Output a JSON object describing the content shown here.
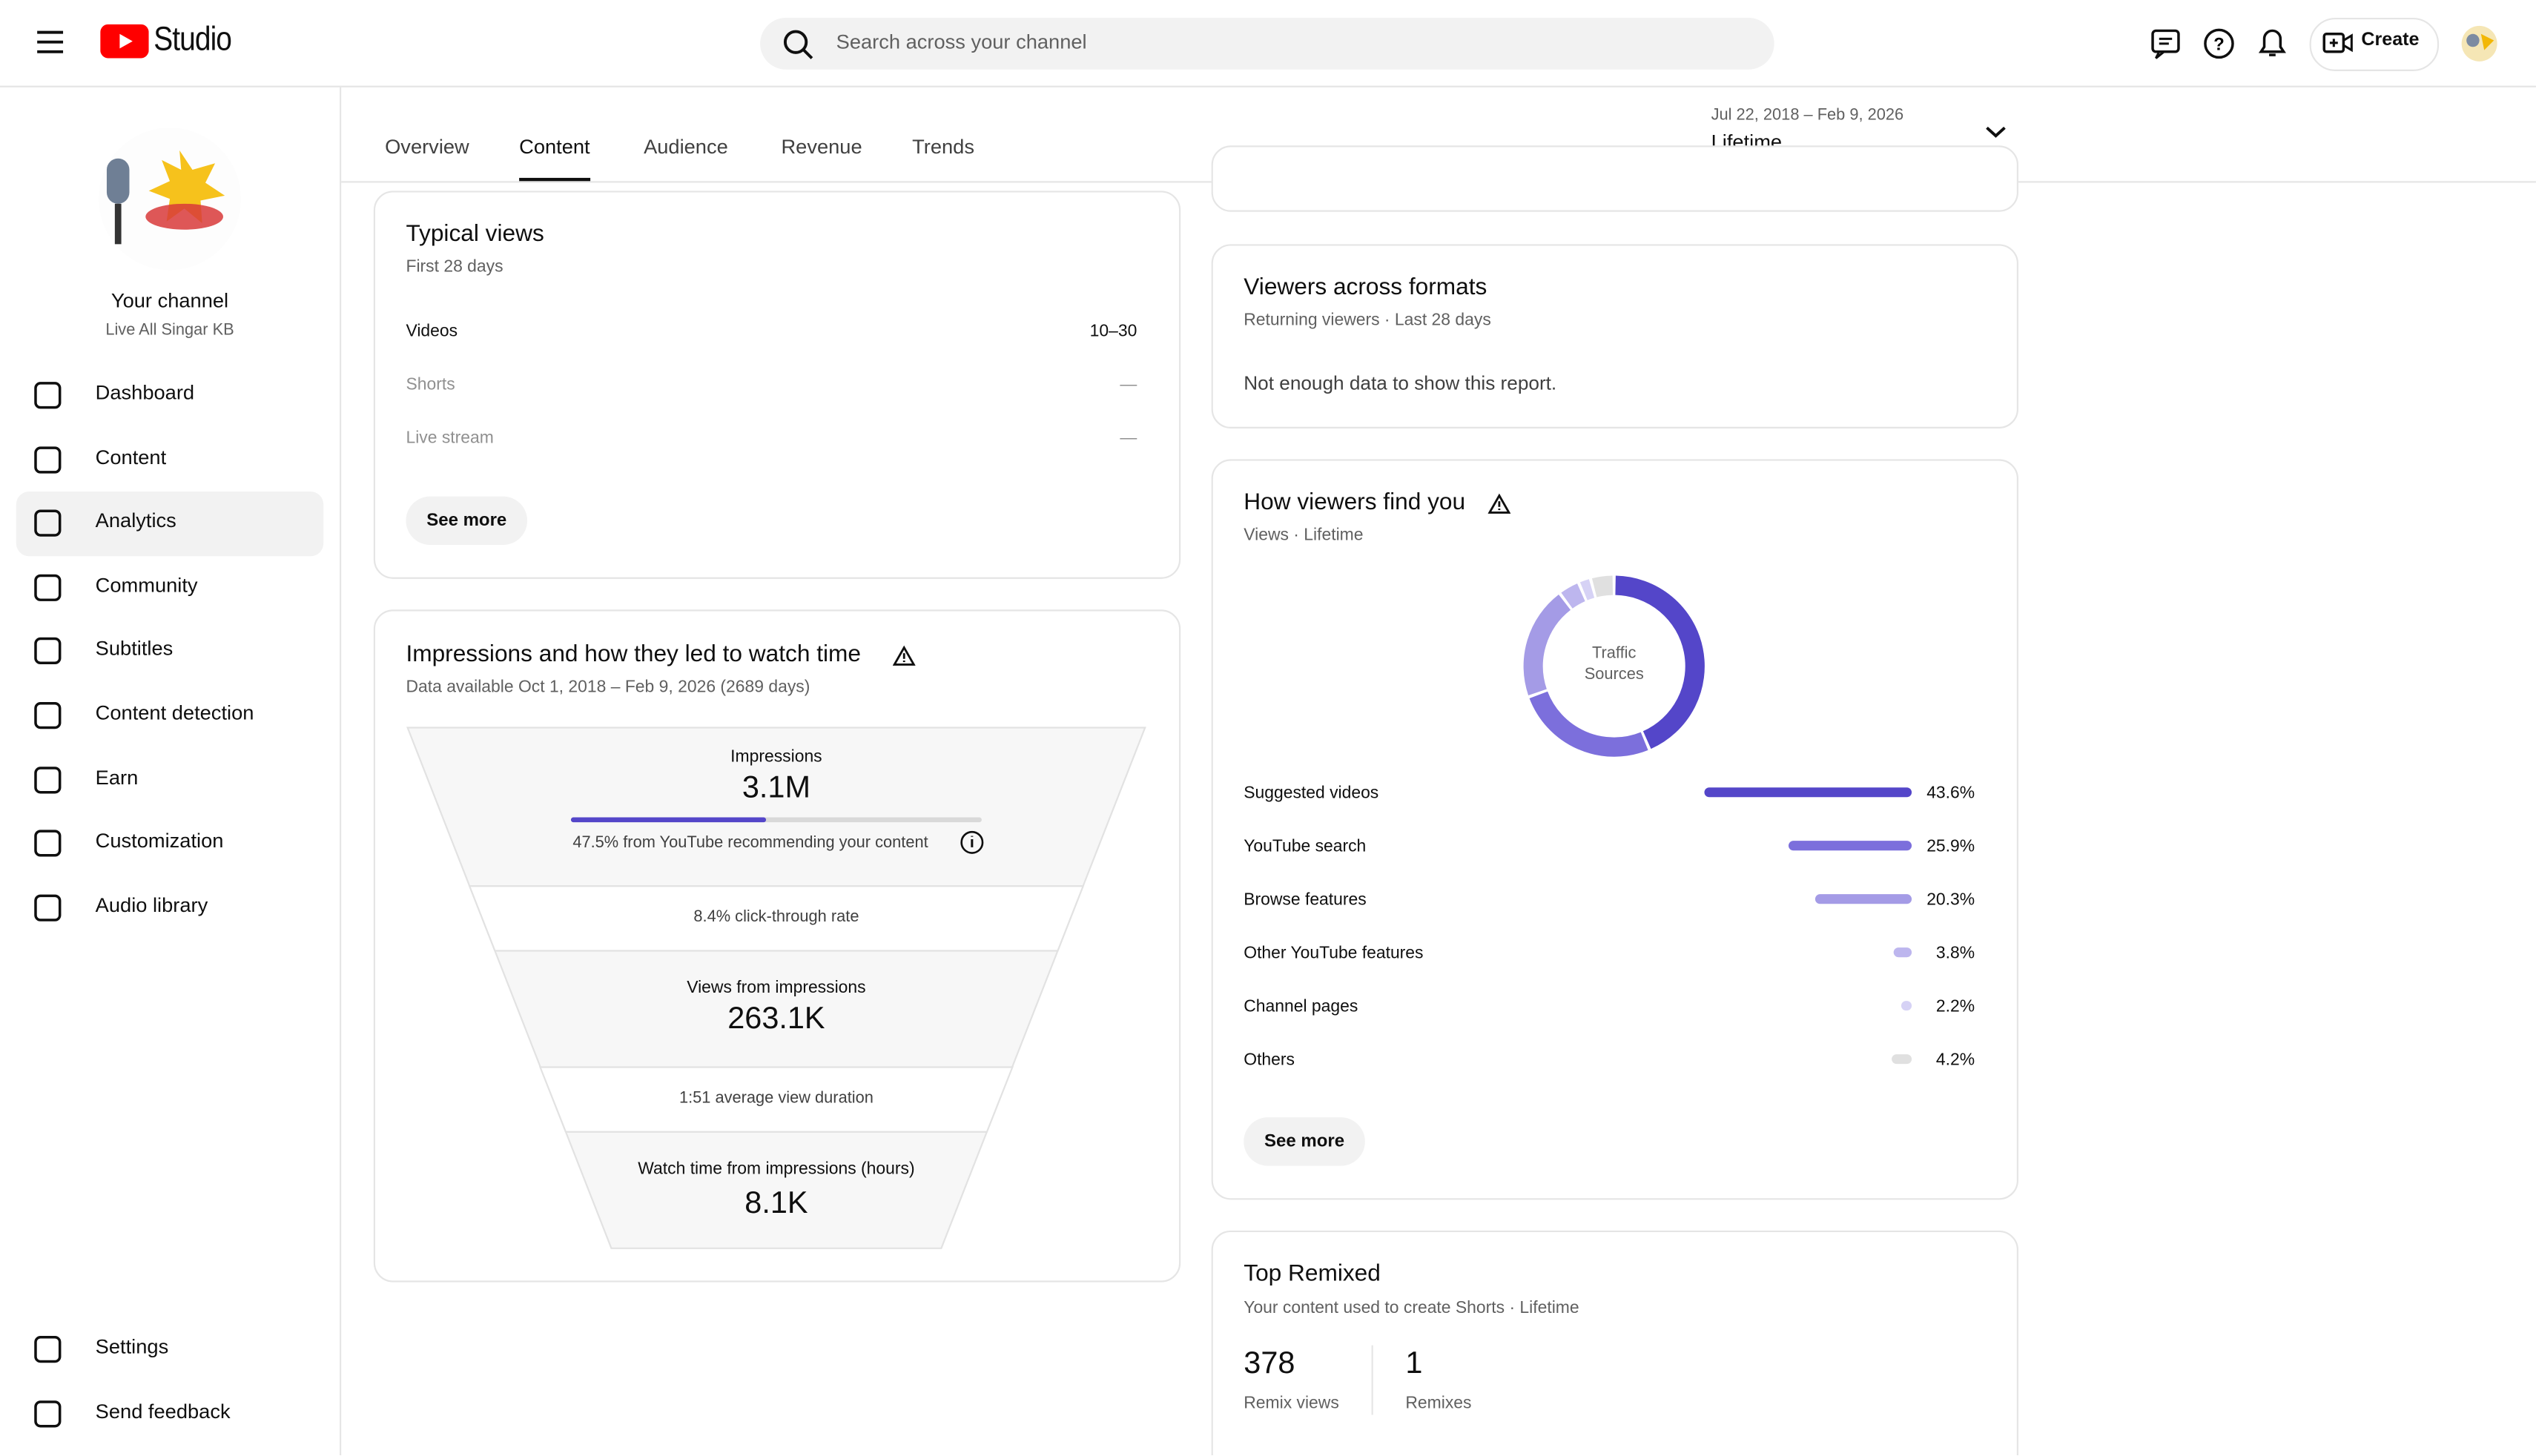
{
  "header": {
    "product": "Studio",
    "search_placeholder": "Search across your channel",
    "create": "Create"
  },
  "sidebar": {
    "channel_title": "Your channel",
    "channel_name": "Live All Singar KB",
    "nav": [
      "Dashboard",
      "Content",
      "Analytics",
      "Community",
      "Subtitles",
      "Content detection",
      "Earn",
      "Customization",
      "Audio library"
    ],
    "footer_nav": [
      "Settings",
      "Send feedback"
    ]
  },
  "tabs": [
    "Overview",
    "Content",
    "Audience",
    "Revenue",
    "Trends"
  ],
  "date_range": {
    "range": "Jul 22, 2018 – Feb 9, 2026",
    "label": "Lifetime"
  },
  "typical_views": {
    "title": "Typical views",
    "subtitle": "First 28 days",
    "rows": [
      [
        "Videos",
        "10–30"
      ],
      [
        "Shorts",
        "—"
      ],
      [
        "Live stream",
        "—"
      ]
    ],
    "button": "See more"
  },
  "impressions": {
    "title": "Impressions and how they led to watch time",
    "subtitle": "Data available Oct 1, 2018 – Feb 9, 2026 (2689 days)",
    "impressions_label": "Impressions",
    "impressions_value": "3.1M",
    "recommended": {
      "value": 47.5,
      "label": "47.5% from YouTube recommending your content"
    },
    "ctr": "8.4% click-through rate",
    "views_label": "Views from impressions",
    "views_value": "263.1K",
    "avg_duration": "1:51 average view duration",
    "watch_label": "Watch time from impressions (hours)",
    "watch_value": "8.1K"
  },
  "viewers_across_formats": {
    "title": "Viewers across formats",
    "subtitle": "Returning viewers · Last 28 days",
    "message": "Not enough data to show this report."
  },
  "chart_data": {
    "type": "donut",
    "title": "How viewers find you",
    "subtitle": "Views · Lifetime",
    "center_label": "Traffic Sources",
    "categories": [
      "Suggested videos",
      "YouTube search",
      "Browse features",
      "Other YouTube features",
      "Channel pages",
      "Others"
    ],
    "values": [
      43.6,
      25.9,
      20.3,
      3.8,
      2.2,
      4.2
    ],
    "value_labels": [
      "43.6%",
      "25.9%",
      "20.3%",
      "3.8%",
      "2.2%",
      "4.2%"
    ],
    "colors": [
      "#5446c9",
      "#7c6fdc",
      "#a49be6",
      "#bdb6ee",
      "#d6d2f5",
      "#e0e0e0"
    ],
    "button": "See more"
  },
  "top_remixed": {
    "title": "Top Remixed",
    "subtitle": "Your content used to create Shorts · Lifetime",
    "stats": [
      {
        "value": "378",
        "label": "Remix views"
      },
      {
        "value": "1",
        "label": "Remixes"
      }
    ]
  }
}
